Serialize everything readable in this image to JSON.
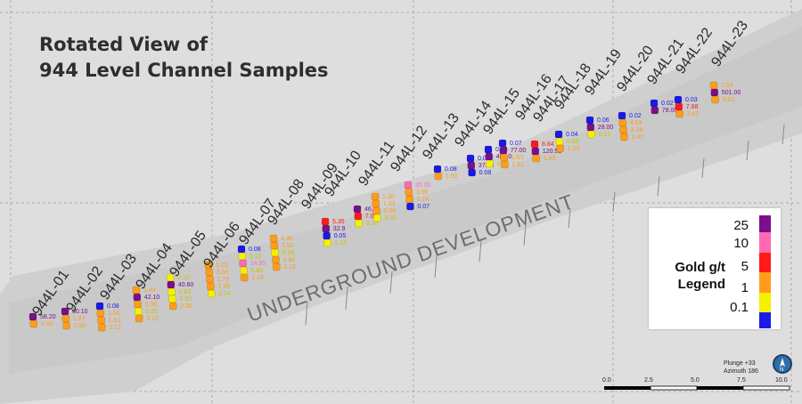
{
  "title": {
    "line1": "Rotated View of",
    "line2": "944 Level Channel Samples"
  },
  "development_label": "UNDERGROUND DEVELOPMENT",
  "legend": {
    "caption_line1": "Gold g/t",
    "caption_line2": "Legend",
    "labels": [
      "25",
      "10",
      "5",
      "1",
      "0.1"
    ],
    "colors": [
      "#7b0f8a",
      "#ff69b4",
      "#ff1a1a",
      "#ff9d1a",
      "#f4f000",
      "#1a1ae6"
    ]
  },
  "plunge": {
    "line1": "Plunge +33",
    "line2": "Azimuth 186"
  },
  "scale_bar": {
    "ticks": [
      "0.0",
      "2.5",
      "5.0",
      "7.5",
      "10.0"
    ]
  },
  "compass": {
    "letter": "N"
  },
  "channels": [
    {
      "name": "944L-01",
      "values": [
        "58.20",
        "3.60"
      ]
    },
    {
      "name": "944L-02",
      "values": [
        "90.10",
        "1.97",
        "2.60"
      ]
    },
    {
      "name": "944L-03",
      "values": [
        "0.08",
        "1.06",
        "1.81",
        "2.12"
      ]
    },
    {
      "name": "944L-04",
      "values": [
        "1.49",
        "42.10",
        "3.06",
        "0.65",
        "3.12"
      ]
    },
    {
      "name": "944L-05",
      "values": [
        "0.10",
        "40.60",
        "0.83",
        "0.93",
        "2.36"
      ]
    },
    {
      "name": "944L-06",
      "values": [
        "1.23",
        "3.06",
        "1.79",
        "1.59",
        "0.14"
      ]
    },
    {
      "name": "944L-07",
      "values": [
        "0.08",
        "0.12",
        "14.95",
        "0.80",
        "2.16"
      ]
    },
    {
      "name": "944L-08",
      "values": [
        "4.30",
        "3.50",
        "0.98",
        "1.44",
        "2.16"
      ]
    },
    {
      "name": "944L-09",
      "values": [
        "5.35",
        "32.9",
        "0.05",
        "0.14"
      ]
    },
    {
      "name": "944L-10",
      "values": [
        "46.6",
        "7.00",
        "0.10"
      ]
    },
    {
      "name": "944L-11",
      "values": [
        "1.30",
        "1.43",
        "2.06",
        "0.32"
      ]
    },
    {
      "name": "944L-12",
      "values": [
        "20.00",
        "3.96",
        "1.24",
        "0.07"
      ]
    },
    {
      "name": "944L-13",
      "values": [
        "0.08",
        "1.00"
      ]
    },
    {
      "name": "944L-14",
      "values": [
        "0.04",
        "37.50",
        "0.08"
      ]
    },
    {
      "name": "944L-15",
      "values": [
        "0.03",
        "48.10",
        "0.37"
      ]
    },
    {
      "name": "944L-16",
      "values": [
        "0.07",
        "77.00",
        "1.63",
        "1.61"
      ]
    },
    {
      "name": "944L-17",
      "values": [
        "8.84",
        "120.50",
        "1.45"
      ]
    },
    {
      "name": "944L-18",
      "values": [
        "0.04",
        "0.98",
        "1.25"
      ]
    },
    {
      "name": "944L-19",
      "values": [
        "0.06",
        "28.00",
        "0.31"
      ]
    },
    {
      "name": "944L-20",
      "values": [
        "0.02",
        "4.63",
        "3.18",
        "1.41"
      ]
    },
    {
      "name": "944L-21",
      "values": [
        "0.02",
        "78.00"
      ]
    },
    {
      "name": "944L-22",
      "values": [
        "0.03",
        "7.68",
        "3.63"
      ]
    },
    {
      "name": "944L-23",
      "values": [
        "1.04",
        "501.00",
        "3.63"
      ]
    }
  ]
}
